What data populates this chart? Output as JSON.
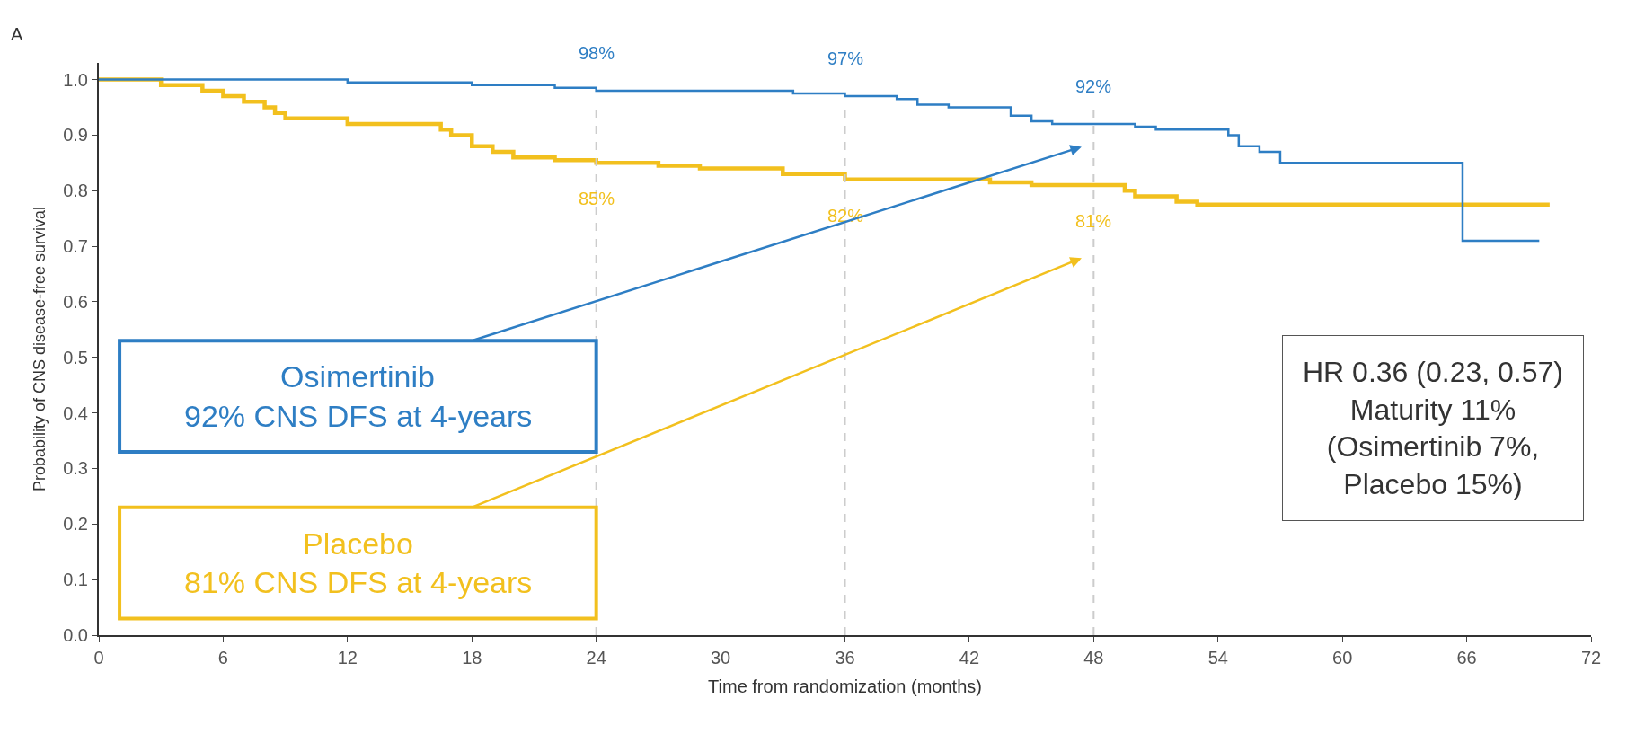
{
  "chart_data": {
    "type": "step",
    "xlabel": "Time from randomization (months)",
    "ylabel": "Probability of CNS disease-free survival",
    "series": [
      {
        "name": "Osimertinib",
        "color": "#2e7ec4",
        "x": [
          0,
          12,
          18,
          22,
          24,
          33.5,
          36,
          38.5,
          39.5,
          41,
          44,
          45,
          46,
          50,
          51,
          54.5,
          55,
          56,
          57,
          65.8,
          69.5
        ],
        "values": [
          1.0,
          0.995,
          0.99,
          0.985,
          0.98,
          0.975,
          0.97,
          0.965,
          0.955,
          0.95,
          0.935,
          0.925,
          0.92,
          0.915,
          0.91,
          0.9,
          0.88,
          0.87,
          0.85,
          0.71,
          0.71
        ]
      },
      {
        "name": "Placebo",
        "color": "#f2c01e",
        "x": [
          0,
          3,
          5,
          6,
          7,
          8,
          8.5,
          9,
          12,
          16.5,
          17,
          18,
          19,
          20,
          22,
          24,
          27,
          29,
          33,
          36,
          43,
          45,
          48,
          49.5,
          50,
          52,
          53,
          70
        ],
        "values": [
          1.0,
          0.99,
          0.98,
          0.97,
          0.96,
          0.95,
          0.94,
          0.93,
          0.92,
          0.91,
          0.9,
          0.88,
          0.87,
          0.86,
          0.855,
          0.85,
          0.845,
          0.84,
          0.83,
          0.82,
          0.815,
          0.81,
          0.81,
          0.8,
          0.79,
          0.78,
          0.775,
          0.775
        ]
      }
    ],
    "xlim": [
      0,
      72
    ],
    "xticks": [
      0,
      6,
      12,
      18,
      24,
      30,
      36,
      42,
      48,
      54,
      60,
      66,
      72
    ],
    "ylim": [
      0,
      1.03
    ],
    "yticks": [
      {
        "value": 0,
        "label": "0.0"
      },
      0.1,
      0.2,
      0.3,
      0.4,
      0.5,
      0.6,
      0.7,
      0.8,
      0.9,
      {
        "value": 1,
        "label": "1.0"
      }
    ],
    "ref_lines": [
      {
        "axis": "x",
        "value": 24,
        "color": "#cccccc",
        "line_style": "dashed"
      },
      {
        "axis": "x",
        "value": 36,
        "color": "#cccccc",
        "line_style": "dashed"
      },
      {
        "axis": "x",
        "value": 48,
        "color": "#cccccc",
        "line_style": "dashed"
      }
    ],
    "annotations": [
      "A",
      {
        "text": "98%",
        "x": 24,
        "y": 0.98
      },
      {
        "text": "97%",
        "x": 36,
        "y": 0.97
      },
      {
        "text": "92%",
        "x": 48,
        "y": 0.92
      },
      {
        "text": "85%",
        "x": 24,
        "y": 0.85
      },
      {
        "text": "82%",
        "x": 36,
        "y": 0.82
      },
      {
        "text": "81%",
        "x": 48,
        "y": 0.81
      },
      "92% CNS DFS at 4-years",
      "81% CNS DFS at 4-years",
      "HR 0.36 (0.23, 0.57)\nMaturity 11%\n(Osimertinib 7%,\nPlacebo 15%)"
    ],
    "legend": false,
    "marker": "none",
    "line_style": "solid"
  }
}
